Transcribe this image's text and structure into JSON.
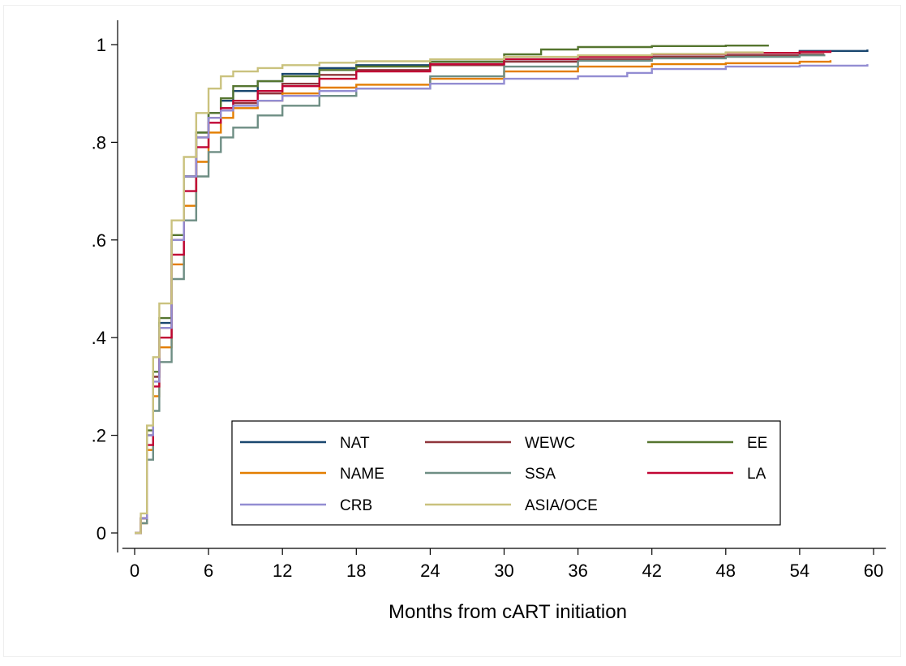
{
  "chart_data": {
    "type": "line",
    "title": "",
    "xlabel": "Months from cART initiation",
    "ylabel": "",
    "xlim": [
      -1,
      61
    ],
    "ylim": [
      -0.04,
      1.05
    ],
    "x_ticks": [
      0,
      6,
      12,
      18,
      24,
      30,
      36,
      42,
      48,
      54,
      60
    ],
    "x_tick_labels": [
      "0",
      "6",
      "12",
      "18",
      "24",
      "30",
      "36",
      "42",
      "48",
      "54",
      "60"
    ],
    "y_ticks": [
      0,
      0.2,
      0.4,
      0.6,
      0.8,
      1.0
    ],
    "y_tick_labels": [
      "0",
      ".2",
      ".4",
      ".6",
      ".8",
      "1"
    ],
    "grid": false,
    "legend_placement": "lower-center",
    "legend_columns": 3,
    "series": [
      {
        "name": "NAT",
        "color": "#1a476f",
        "x": [
          0,
          0.5,
          1,
          1.5,
          2,
          3,
          4,
          5,
          6,
          7,
          8,
          10,
          12,
          15,
          18,
          24,
          30,
          36,
          42,
          48,
          54,
          59.5
        ],
        "y": [
          0,
          0.03,
          0.2,
          0.32,
          0.43,
          0.6,
          0.73,
          0.82,
          0.86,
          0.885,
          0.905,
          0.925,
          0.94,
          0.952,
          0.958,
          0.965,
          0.97,
          0.975,
          0.98,
          0.983,
          0.987,
          0.99
        ]
      },
      {
        "name": "WEWC",
        "color": "#90353b",
        "x": [
          0,
          0.5,
          1,
          1.5,
          2,
          3,
          4,
          5,
          6,
          7,
          8,
          10,
          12,
          15,
          18,
          24,
          30,
          36,
          42,
          48,
          54,
          56
        ],
        "y": [
          0,
          0.03,
          0.2,
          0.32,
          0.42,
          0.6,
          0.73,
          0.81,
          0.85,
          0.87,
          0.88,
          0.9,
          0.92,
          0.938,
          0.948,
          0.958,
          0.965,
          0.97,
          0.975,
          0.978,
          0.98,
          0.98
        ]
      },
      {
        "name": "EE",
        "color": "#55752f",
        "x": [
          0,
          0.5,
          1,
          1.5,
          2,
          3,
          4,
          5,
          6,
          7,
          8,
          10,
          12,
          15,
          18,
          24,
          30,
          33,
          36,
          42,
          48,
          51.5
        ],
        "y": [
          0,
          0.03,
          0.21,
          0.33,
          0.44,
          0.61,
          0.73,
          0.82,
          0.86,
          0.89,
          0.915,
          0.925,
          0.935,
          0.948,
          0.955,
          0.965,
          0.98,
          0.99,
          0.995,
          0.997,
          0.998,
          0.998
        ]
      },
      {
        "name": "NAME",
        "color": "#e37e00",
        "x": [
          0,
          0.5,
          1,
          1.5,
          2,
          3,
          4,
          5,
          6,
          7,
          8,
          10,
          12,
          15,
          18,
          24,
          30,
          36,
          42,
          48,
          54,
          56.5
        ],
        "y": [
          0,
          0.02,
          0.17,
          0.28,
          0.38,
          0.55,
          0.67,
          0.76,
          0.82,
          0.85,
          0.87,
          0.885,
          0.9,
          0.912,
          0.918,
          0.93,
          0.945,
          0.955,
          0.96,
          0.962,
          0.965,
          0.968
        ]
      },
      {
        "name": "SSA",
        "color": "#6e8e84",
        "x": [
          0,
          0.5,
          1,
          1.5,
          2,
          3,
          4,
          5,
          6,
          7,
          8,
          10,
          12,
          15,
          18,
          24,
          30,
          36,
          42,
          48,
          54,
          56
        ],
        "y": [
          0,
          0.02,
          0.15,
          0.25,
          0.35,
          0.52,
          0.64,
          0.73,
          0.78,
          0.81,
          0.83,
          0.855,
          0.875,
          0.895,
          0.91,
          0.935,
          0.955,
          0.967,
          0.972,
          0.975,
          0.978,
          0.98
        ]
      },
      {
        "name": "LA",
        "color": "#c10534",
        "x": [
          0,
          0.5,
          1,
          1.5,
          2,
          3,
          4,
          5,
          6,
          7,
          8,
          10,
          12,
          15,
          18,
          24,
          30,
          36,
          42,
          48,
          54,
          56.5
        ],
        "y": [
          0,
          0.03,
          0.18,
          0.3,
          0.4,
          0.57,
          0.7,
          0.79,
          0.84,
          0.87,
          0.885,
          0.905,
          0.915,
          0.93,
          0.945,
          0.96,
          0.97,
          0.975,
          0.98,
          0.983,
          0.985,
          0.988
        ]
      },
      {
        "name": "CRB",
        "color": "#938dd2",
        "x": [
          0,
          0.5,
          1,
          1.5,
          2,
          3,
          4,
          5,
          6,
          7,
          8,
          10,
          12,
          15,
          18,
          24,
          30,
          36,
          40,
          42,
          48,
          54,
          59.5
        ],
        "y": [
          0,
          0.03,
          0.2,
          0.31,
          0.42,
          0.6,
          0.73,
          0.81,
          0.85,
          0.865,
          0.875,
          0.885,
          0.895,
          0.905,
          0.91,
          0.92,
          0.93,
          0.935,
          0.942,
          0.95,
          0.955,
          0.957,
          0.96
        ]
      },
      {
        "name": "ASIA/OCE",
        "color": "#cac27e",
        "x": [
          0,
          0.5,
          1,
          1.5,
          2,
          3,
          4,
          5,
          6,
          7,
          8,
          10,
          12,
          15,
          18,
          24,
          30,
          36,
          42,
          48,
          51
        ],
        "y": [
          0,
          0.04,
          0.22,
          0.36,
          0.47,
          0.64,
          0.77,
          0.86,
          0.91,
          0.935,
          0.945,
          0.952,
          0.958,
          0.963,
          0.966,
          0.97,
          0.975,
          0.978,
          0.981,
          0.984,
          0.986
        ]
      }
    ]
  }
}
